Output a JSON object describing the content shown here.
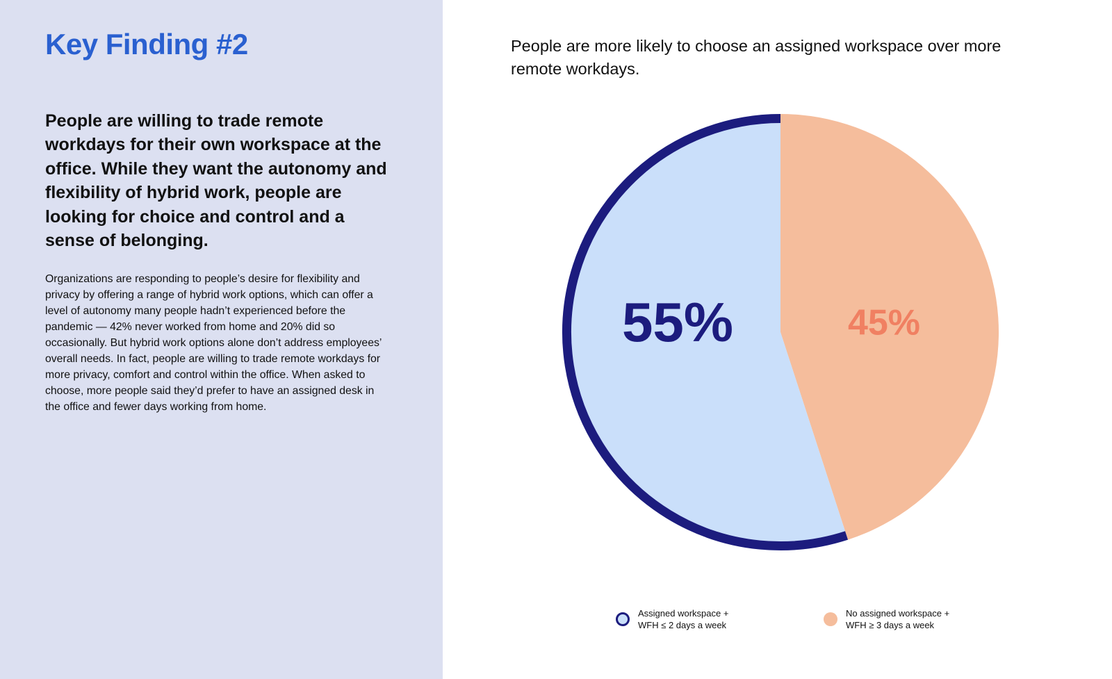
{
  "left_panel": {
    "title": "Key Finding #2",
    "lead": "People are willing to trade remote workdays for their own workspace at the office. While they want the autonomy and flexibility of hybrid work, people are looking for choice and control and a sense of belonging.",
    "body": "Organizations are responding to people’s desire for flexibility and privacy by offering a range of hybrid work options, which can offer a level of autonomy many people hadn’t experienced before the pandemic — 42% never worked from home and 20% did so occasionally. But hybrid work options alone don’t address employees’ overall needs. In fact, people are willing to trade remote workdays for more privacy, comfort and control within the office. When asked to choose, more people said they’d prefer to have an assigned desk in the office and fewer days working from home."
  },
  "colors": {
    "left_background": "#dce0f1",
    "title_blue": "#2a60d0",
    "navy": "#1c1c7e",
    "light_blue_fill": "#cadffa",
    "peach_fill": "#f5bd9c",
    "coral_label": "#f08062"
  },
  "chart_data": {
    "type": "pie",
    "title": "People are more likely to choose an assigned workspace over more remote workdays.",
    "slices": [
      {
        "legend_line1": "Assigned workspace +",
        "legend_line2": "WFH ≤ 2 days a week",
        "value": 55,
        "label": "55%",
        "fill": "#cadffa",
        "stroke": "#1c1c7e",
        "label_color": "#1c1c7e"
      },
      {
        "legend_line1": "No assigned workspace +",
        "legend_line2": "WFH ≥ 3 days a week",
        "value": 45,
        "label": "45%",
        "fill": "#f5bd9c",
        "stroke": "none",
        "label_color": "#f08062"
      }
    ],
    "legend_position": "bottom"
  }
}
